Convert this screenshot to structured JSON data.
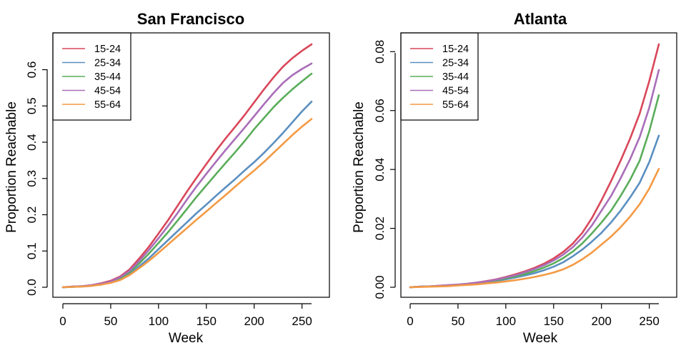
{
  "chart_data": [
    {
      "type": "line",
      "title": "San Francisco",
      "xlabel": "Week",
      "ylabel": "Proportion Reachable",
      "xlim": [
        0,
        260
      ],
      "ylim": [
        0,
        0.67
      ],
      "xticks": [
        0,
        50,
        100,
        150,
        200,
        250
      ],
      "yticks": [
        0.0,
        0.1,
        0.2,
        0.3,
        0.4,
        0.5,
        0.6
      ],
      "ytick_labels": [
        "0.0",
        "0.1",
        "0.2",
        "0.3",
        "0.4",
        "0.5",
        "0.6"
      ],
      "grid": false,
      "legend_position": "top-left",
      "x": [
        0,
        10,
        20,
        30,
        40,
        50,
        60,
        70,
        80,
        90,
        100,
        110,
        120,
        130,
        140,
        150,
        160,
        170,
        180,
        190,
        200,
        210,
        220,
        230,
        240,
        250,
        260
      ],
      "series": [
        {
          "name": "15-24",
          "color": "#d9475a",
          "values": [
            0,
            0.002,
            0.003,
            0.006,
            0.011,
            0.018,
            0.03,
            0.05,
            0.08,
            0.112,
            0.148,
            0.185,
            0.225,
            0.265,
            0.303,
            0.34,
            0.376,
            0.41,
            0.442,
            0.475,
            0.51,
            0.545,
            0.578,
            0.608,
            0.632,
            0.652,
            0.67
          ]
        },
        {
          "name": "25-34",
          "color": "#5b8fc0",
          "values": [
            0,
            0.001,
            0.002,
            0.004,
            0.008,
            0.013,
            0.022,
            0.037,
            0.058,
            0.08,
            0.105,
            0.13,
            0.155,
            0.18,
            0.205,
            0.228,
            0.252,
            0.275,
            0.298,
            0.322,
            0.345,
            0.37,
            0.397,
            0.425,
            0.455,
            0.485,
            0.512
          ]
        },
        {
          "name": "35-44",
          "color": "#5aad5a",
          "values": [
            0,
            0.001,
            0.003,
            0.005,
            0.009,
            0.015,
            0.025,
            0.042,
            0.066,
            0.093,
            0.122,
            0.152,
            0.184,
            0.217,
            0.25,
            0.281,
            0.312,
            0.342,
            0.372,
            0.403,
            0.436,
            0.466,
            0.496,
            0.522,
            0.546,
            0.568,
            0.589
          ]
        },
        {
          "name": "45-54",
          "color": "#a96eb8",
          "values": [
            0,
            0.002,
            0.003,
            0.006,
            0.01,
            0.016,
            0.028,
            0.046,
            0.073,
            0.103,
            0.135,
            0.169,
            0.205,
            0.243,
            0.279,
            0.313,
            0.346,
            0.378,
            0.409,
            0.44,
            0.472,
            0.504,
            0.535,
            0.563,
            0.585,
            0.602,
            0.617
          ]
        },
        {
          "name": "55-64",
          "color": "#f39a45",
          "values": [
            0,
            0.001,
            0.002,
            0.004,
            0.007,
            0.012,
            0.02,
            0.034,
            0.053,
            0.073,
            0.095,
            0.118,
            0.141,
            0.164,
            0.187,
            0.209,
            0.232,
            0.254,
            0.277,
            0.3,
            0.322,
            0.345,
            0.37,
            0.395,
            0.42,
            0.443,
            0.464
          ]
        }
      ]
    },
    {
      "type": "line",
      "title": "Atlanta",
      "xlabel": "Week",
      "ylabel": "Proportion Reachable",
      "xlim": [
        0,
        260
      ],
      "ylim": [
        0,
        0.0825
      ],
      "xticks": [
        0,
        50,
        100,
        150,
        200,
        250
      ],
      "yticks": [
        0.0,
        0.02,
        0.04,
        0.06,
        0.08
      ],
      "ytick_labels": [
        "0.00",
        "0.02",
        "0.04",
        "0.06",
        "0.08"
      ],
      "grid": false,
      "legend_position": "top-left",
      "x": [
        0,
        10,
        20,
        30,
        40,
        50,
        60,
        70,
        80,
        90,
        100,
        110,
        120,
        130,
        140,
        150,
        160,
        170,
        180,
        190,
        200,
        210,
        220,
        230,
        240,
        250,
        260
      ],
      "series": [
        {
          "name": "15-24",
          "color": "#d9475a",
          "values": [
            0,
            0.0002,
            0.0003,
            0.0005,
            0.0007,
            0.0009,
            0.0012,
            0.0016,
            0.0021,
            0.0027,
            0.0035,
            0.0044,
            0.0054,
            0.0066,
            0.008,
            0.0098,
            0.012,
            0.0148,
            0.0185,
            0.0235,
            0.0295,
            0.036,
            0.043,
            0.0505,
            0.059,
            0.07,
            0.0825
          ]
        },
        {
          "name": "25-34",
          "color": "#5b8fc0",
          "values": [
            0,
            0.0002,
            0.0003,
            0.0004,
            0.0006,
            0.0008,
            0.001,
            0.0013,
            0.0017,
            0.0021,
            0.0027,
            0.0033,
            0.004,
            0.0048,
            0.0058,
            0.007,
            0.0085,
            0.0105,
            0.0128,
            0.0155,
            0.0185,
            0.022,
            0.026,
            0.0305,
            0.0355,
            0.0425,
            0.0515
          ]
        },
        {
          "name": "35-44",
          "color": "#5aad5a",
          "values": [
            0,
            0.0002,
            0.0003,
            0.0004,
            0.0006,
            0.0008,
            0.0011,
            0.0014,
            0.0019,
            0.0024,
            0.003,
            0.0037,
            0.0045,
            0.0055,
            0.0067,
            0.0081,
            0.0099,
            0.0121,
            0.0149,
            0.0183,
            0.022,
            0.026,
            0.031,
            0.0365,
            0.043,
            0.053,
            0.0652
          ]
        },
        {
          "name": "45-54",
          "color": "#a96eb8",
          "values": [
            0,
            0.0002,
            0.0003,
            0.0005,
            0.0007,
            0.0009,
            0.0012,
            0.0016,
            0.002,
            0.0026,
            0.0033,
            0.0041,
            0.0051,
            0.0062,
            0.0075,
            0.0091,
            0.0111,
            0.0136,
            0.0169,
            0.021,
            0.026,
            0.031,
            0.037,
            0.0435,
            0.051,
            0.061,
            0.0738
          ]
        },
        {
          "name": "55-64",
          "color": "#f39a45",
          "values": [
            0,
            0.0001,
            0.0002,
            0.0003,
            0.0004,
            0.0006,
            0.0008,
            0.001,
            0.0013,
            0.0016,
            0.002,
            0.0024,
            0.0029,
            0.0035,
            0.0042,
            0.005,
            0.0061,
            0.0076,
            0.0095,
            0.0118,
            0.0145,
            0.0172,
            0.0204,
            0.024,
            0.0282,
            0.0335,
            0.0402
          ]
        }
      ]
    }
  ]
}
